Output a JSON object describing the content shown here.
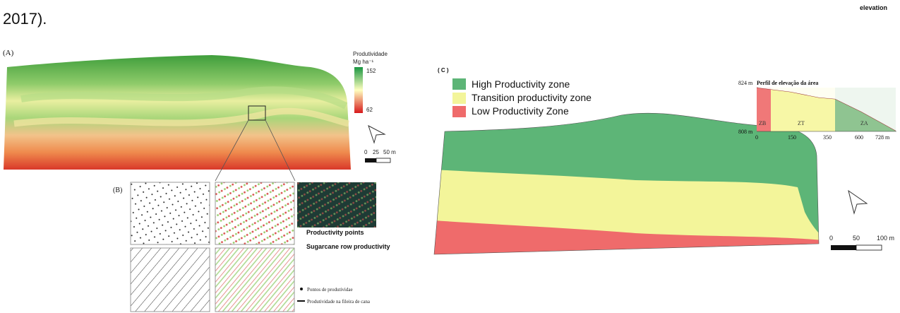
{
  "intro": "2017).",
  "header_right": "elevation",
  "panel_a": {
    "label": "(A)",
    "legend_title": "Produtividade",
    "legend_unit": "Mg ha⁻¹",
    "legend_max": "152",
    "legend_min": "62",
    "scale": [
      "0",
      "25",
      "50 m"
    ]
  },
  "panel_b": {
    "label": "(B)",
    "caption_points": "Productivity points",
    "caption_rows": "Sugarcane row productivity",
    "legend": [
      "Pontos de produtividae",
      "Produtividade na fileira de cana"
    ]
  },
  "panel_c": {
    "label": "( C )",
    "zones": [
      "High Productivity zone",
      "Transition productivity zone",
      "Low Productivity Zone"
    ],
    "profile": {
      "title": "Perfil de elevação da área",
      "y_top": "824 m",
      "y_bottom": "808 m",
      "zones": [
        "ZB",
        "ZT",
        "ZA"
      ],
      "x_ticks": [
        "0",
        "150",
        "350",
        "600",
        "728 m"
      ]
    },
    "scale": [
      "0",
      "50",
      "100 m"
    ]
  }
}
